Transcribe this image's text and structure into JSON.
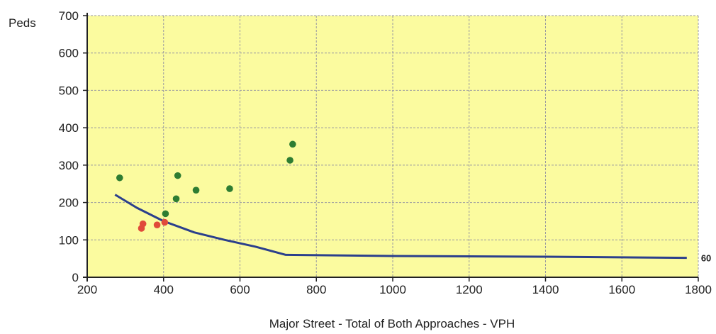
{
  "chart_data": {
    "type": "scatter",
    "title": "",
    "xlabel": "Major Street - Total of Both Approaches - VPH",
    "ylabel": "Peds",
    "xlim": [
      200,
      1800
    ],
    "ylim": [
      0,
      700
    ],
    "x_ticks": [
      200,
      400,
      600,
      800,
      1000,
      1200,
      1400,
      1600,
      1800
    ],
    "y_ticks": [
      0,
      100,
      200,
      300,
      400,
      500,
      600,
      700
    ],
    "grid": true,
    "plot_background": "#fbfb9f",
    "series": [
      {
        "color": "#2e7d32",
        "kind": "scatter",
        "points": [
          [
            285,
            266
          ],
          [
            405,
            170
          ],
          [
            433,
            210
          ],
          [
            437,
            272
          ],
          [
            485,
            233
          ],
          [
            573,
            237
          ],
          [
            731,
            313
          ],
          [
            738,
            356
          ]
        ]
      },
      {
        "color": "#e04a3a",
        "kind": "scatter",
        "points": [
          [
            342,
            131
          ],
          [
            346,
            143
          ],
          [
            383,
            140
          ],
          [
            403,
            147
          ]
        ]
      },
      {
        "color": "#2b3f8c",
        "kind": "line",
        "points": [
          [
            273,
            221
          ],
          [
            330,
            186
          ],
          [
            400,
            150
          ],
          [
            480,
            120
          ],
          [
            560,
            100
          ],
          [
            640,
            82
          ],
          [
            720,
            60
          ],
          [
            1000,
            57
          ],
          [
            1400,
            55
          ],
          [
            1770,
            52
          ]
        ]
      }
    ],
    "annotations": [
      {
        "text": "60",
        "x": 1770,
        "y": 52
      }
    ]
  }
}
